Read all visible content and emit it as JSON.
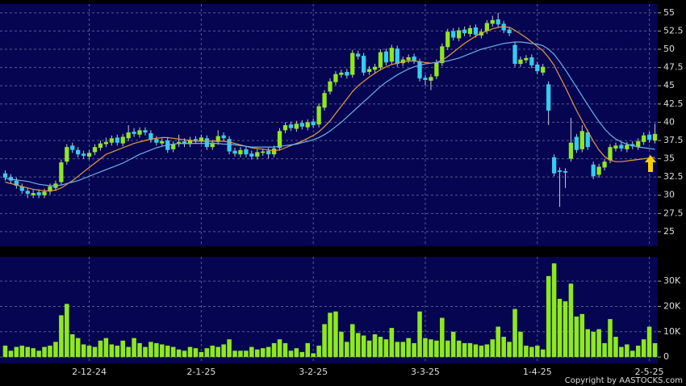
{
  "chart_data": {
    "type": "candlestick",
    "copyright": "Copyright by AASTOCKS.com",
    "categories": [
      null,
      null,
      null,
      null,
      null,
      null,
      null,
      null,
      null,
      null,
      null,
      null,
      null,
      null,
      null,
      "2-12-24",
      null,
      null,
      null,
      null,
      null,
      null,
      null,
      null,
      null,
      null,
      null,
      null,
      null,
      null,
      null,
      null,
      null,
      null,
      null,
      "2-1-25",
      null,
      null,
      null,
      null,
      null,
      null,
      null,
      null,
      null,
      null,
      null,
      null,
      null,
      null,
      null,
      null,
      null,
      null,
      null,
      "3-2-25",
      null,
      null,
      null,
      null,
      null,
      null,
      null,
      null,
      null,
      null,
      null,
      null,
      null,
      null,
      null,
      null,
      null,
      null,
      null,
      "3-3-25",
      null,
      null,
      null,
      null,
      null,
      null,
      null,
      null,
      null,
      null,
      null,
      null,
      null,
      null,
      null,
      null,
      null,
      null,
      null,
      "1-4-25",
      null,
      null,
      null,
      null,
      null,
      null,
      null,
      null,
      null,
      null,
      null,
      null,
      null,
      null,
      null,
      null,
      null,
      null,
      null,
      "2-5-25",
      null
    ],
    "ohlc": {
      "up_color": "#8ee81e",
      "down_color": "#33ccf0",
      "open": [
        33.0,
        32.5,
        32.0,
        31.2,
        30.6,
        30.0,
        30.4,
        30.0,
        30.5,
        31.0,
        31.8,
        34.6,
        36.8,
        36.2,
        35.7,
        35.3,
        35.9,
        36.5,
        37.0,
        37.2,
        37.9,
        37.1,
        37.8,
        38.7,
        38.3,
        38.9,
        38.5,
        37.7,
        37.1,
        37.5,
        36.3,
        37.0,
        37.4,
        37.0,
        37.7,
        37.4,
        37.8,
        36.6,
        37.3,
        38.2,
        37.7,
        36.1,
        35.6,
        36.3,
        35.7,
        35.3,
        35.8,
        36.1,
        35.6,
        36.5,
        38.9,
        39.7,
        39.1,
        39.9,
        39.3,
        40.1,
        39.7,
        42.0,
        44.2,
        45.5,
        46.5,
        46.9,
        46.5,
        49.4,
        49.1,
        46.9,
        47.2,
        47.5,
        49.7,
        48.3,
        50.1,
        48.1,
        48.5,
        49.0,
        48.3,
        46.1,
        45.7,
        46.3,
        48.1,
        50.3,
        52.5,
        51.5,
        52.7,
        52.1,
        53.0,
        51.9,
        52.5,
        53.5,
        54.1,
        53.5,
        52.7,
        50.6,
        48.0,
        48.5,
        48.9,
        47.9,
        46.8,
        45.2,
        35.2,
        33.4,
        33.3,
        35.0,
        38.0,
        36.3,
        38.6,
        34.2,
        32.8,
        33.8,
        34.8,
        36.4,
        36.9,
        36.3,
        37.0,
        36.6,
        37.3,
        38.3,
        37.5
      ],
      "high": [
        33.4,
        32.9,
        32.4,
        31.6,
        31.0,
        30.7,
        30.8,
        30.9,
        31.6,
        32.0,
        34.9,
        37.0,
        37.2,
        36.6,
        36.1,
        36.2,
        37.0,
        37.5,
        37.9,
        38.2,
        38.3,
        38.4,
        39.6,
        39.2,
        39.3,
        39.3,
        38.9,
        38.1,
        37.8,
        37.9,
        37.4,
        38.3,
        37.8,
        38.0,
        38.1,
        38.3,
        38.2,
        37.6,
        38.9,
        38.6,
        38.1,
        36.5,
        36.6,
        36.7,
        36.1,
        36.3,
        36.4,
        36.5,
        36.8,
        39.2,
        40.0,
        40.1,
        40.2,
        40.3,
        40.4,
        40.5,
        42.6,
        44.4,
        46.0,
        47.0,
        47.2,
        47.3,
        49.9,
        49.8,
        49.5,
        47.7,
        48.0,
        50.0,
        50.1,
        50.6,
        50.5,
        49.0,
        49.3,
        49.4,
        48.7,
        46.5,
        46.6,
        48.6,
        50.8,
        52.8,
        52.9,
        53.0,
        53.1,
        53.3,
        53.4,
        52.8,
        54.0,
        54.6,
        55.0,
        53.9,
        53.1,
        51.0,
        49.0,
        49.2,
        49.3,
        48.3,
        48.0,
        45.6,
        35.6,
        33.8,
        33.7,
        40.6,
        38.4,
        39.6,
        39.0,
        34.6,
        34.3,
        35.0,
        37.0,
        37.2,
        37.3,
        37.3,
        37.4,
        37.8,
        38.6,
        38.7,
        39.8
      ],
      "low": [
        32.0,
        31.6,
        30.9,
        30.2,
        29.6,
        29.6,
        29.6,
        29.6,
        30.1,
        30.6,
        31.4,
        34.2,
        35.8,
        35.2,
        35.0,
        34.9,
        35.5,
        36.1,
        36.6,
        36.8,
        36.8,
        36.7,
        37.4,
        38.0,
        37.9,
        38.2,
        37.2,
        36.8,
        36.7,
        35.8,
        35.9,
        36.6,
        36.6,
        36.6,
        37.1,
        37.0,
        36.2,
        36.2,
        36.9,
        37.4,
        35.6,
        35.3,
        35.2,
        35.2,
        34.9,
        34.9,
        35.4,
        35.0,
        35.2,
        36.1,
        38.5,
        38.8,
        38.7,
        39.0,
        38.9,
        39.2,
        39.3,
        41.6,
        43.8,
        45.1,
        46.1,
        46.0,
        46.1,
        48.6,
        46.4,
        46.5,
        46.8,
        47.1,
        47.8,
        47.9,
        47.6,
        47.7,
        48.1,
        48.0,
        45.6,
        45.0,
        44.4,
        45.9,
        47.7,
        49.9,
        51.2,
        51.1,
        51.8,
        51.7,
        51.6,
        51.5,
        52.1,
        53.1,
        53.0,
        52.2,
        51.8,
        47.6,
        47.6,
        48.1,
        47.4,
        46.6,
        46.4,
        39.6,
        32.6,
        28.4,
        31.0,
        34.6,
        35.8,
        35.9,
        36.2,
        32.2,
        32.4,
        33.4,
        34.4,
        36.0,
        36.0,
        35.9,
        36.3,
        36.2,
        36.9,
        37.2,
        37.1
      ],
      "close": [
        32.4,
        32.0,
        31.3,
        30.6,
        30.2,
        30.3,
        30.0,
        30.5,
        31.2,
        31.6,
        34.5,
        36.6,
        36.2,
        35.6,
        35.4,
        35.8,
        36.6,
        37.1,
        37.3,
        37.8,
        37.2,
        38.0,
        38.6,
        38.4,
        38.9,
        38.6,
        37.6,
        37.2,
        37.4,
        36.2,
        37.0,
        37.3,
        37.0,
        37.6,
        37.5,
        37.9,
        36.6,
        37.2,
        38.1,
        37.8,
        36.0,
        35.7,
        36.2,
        35.6,
        35.3,
        35.9,
        36.0,
        35.6,
        36.4,
        38.8,
        39.6,
        39.2,
        39.8,
        39.4,
        40.0,
        39.6,
        42.2,
        44.0,
        45.6,
        46.6,
        46.8,
        46.4,
        49.5,
        49.0,
        46.8,
        47.3,
        47.6,
        49.6,
        48.2,
        50.2,
        48.0,
        48.6,
        48.9,
        48.4,
        46.0,
        45.8,
        46.2,
        48.2,
        50.4,
        52.4,
        51.6,
        52.6,
        52.2,
        52.9,
        52.0,
        52.4,
        53.6,
        54.0,
        53.4,
        52.6,
        52.2,
        48.0,
        48.6,
        48.8,
        47.8,
        47.0,
        47.6,
        41.6,
        33.0,
        33.2,
        33.1,
        37.2,
        36.2,
        38.8,
        36.6,
        32.6,
        33.9,
        34.6,
        36.6,
        36.8,
        36.4,
        36.9,
        36.7,
        37.4,
        38.2,
        37.6,
        38.4
      ]
    },
    "lines": [
      {
        "color": "#e89a3c",
        "values": [
          31.8,
          31.6,
          31.4,
          31.2,
          31.0,
          30.8,
          30.7,
          30.6,
          30.6,
          30.7,
          31.0,
          31.5,
          32.0,
          32.6,
          33.2,
          33.8,
          34.4,
          35.0,
          35.6,
          35.9,
          36.2,
          36.5,
          36.8,
          37.1,
          37.3,
          37.5,
          37.7,
          37.8,
          37.9,
          37.9,
          37.8,
          37.7,
          37.6,
          37.5,
          37.4,
          37.4,
          37.4,
          37.4,
          37.4,
          37.4,
          37.3,
          37.1,
          36.9,
          36.7,
          36.5,
          36.4,
          36.3,
          36.2,
          36.1,
          36.2,
          36.5,
          36.8,
          37.1,
          37.4,
          37.8,
          38.2,
          38.7,
          39.4,
          40.2,
          41.2,
          42.2,
          43.2,
          44.2,
          45.0,
          45.6,
          46.2,
          46.7,
          47.2,
          47.6,
          47.9,
          48.1,
          48.3,
          48.4,
          48.4,
          48.3,
          48.2,
          48.1,
          48.2,
          48.5,
          49.0,
          49.6,
          50.2,
          50.8,
          51.3,
          51.8,
          52.2,
          52.5,
          52.8,
          53.0,
          53.1,
          53.0,
          52.6,
          52.1,
          51.6,
          51.0,
          50.4,
          49.8,
          48.9,
          47.8,
          46.3,
          44.8,
          43.2,
          41.6,
          40.2,
          38.8,
          37.4,
          36.2,
          35.3,
          34.8,
          34.6,
          34.6,
          34.7,
          34.8,
          34.9,
          35.0,
          35.1,
          35.2
        ]
      },
      {
        "color": "#6ab2e6",
        "values": [
          32.3,
          32.2,
          32.1,
          32.0,
          31.9,
          31.7,
          31.5,
          31.4,
          31.3,
          31.3,
          31.4,
          31.6,
          31.8,
          32.0,
          32.3,
          32.6,
          32.9,
          33.2,
          33.5,
          33.8,
          34.1,
          34.4,
          34.8,
          35.2,
          35.6,
          35.9,
          36.2,
          36.5,
          36.7,
          36.9,
          37.0,
          37.1,
          37.1,
          37.1,
          37.1,
          37.1,
          37.1,
          37.1,
          37.1,
          37.0,
          37.0,
          36.9,
          36.8,
          36.7,
          36.6,
          36.6,
          36.6,
          36.6,
          36.6,
          36.7,
          36.8,
          36.9,
          37.0,
          37.2,
          37.4,
          37.6,
          37.9,
          38.3,
          38.8,
          39.4,
          40.0,
          40.7,
          41.4,
          42.1,
          42.8,
          43.5,
          44.2,
          44.9,
          45.5,
          46.0,
          46.5,
          46.9,
          47.3,
          47.6,
          47.8,
          48.0,
          48.1,
          48.2,
          48.3,
          48.4,
          48.6,
          48.8,
          49.1,
          49.4,
          49.7,
          50.0,
          50.2,
          50.4,
          50.6,
          50.8,
          50.9,
          51.0,
          51.0,
          50.9,
          50.8,
          50.7,
          50.5,
          50.0,
          49.3,
          48.3,
          47.2,
          46.0,
          44.8,
          43.6,
          42.4,
          41.2,
          40.1,
          39.1,
          38.3,
          37.7,
          37.3,
          37.0,
          36.8,
          36.6,
          36.5,
          36.4,
          36.3
        ]
      }
    ],
    "ylim": [
      23,
      56.2
    ],
    "yticks": [
      25,
      27.5,
      30,
      32.5,
      35,
      37.5,
      40,
      42.5,
      45,
      47.5,
      50,
      52.5,
      55
    ],
    "grid": true,
    "volume": {
      "type": "bar",
      "color": "#8ee81e",
      "ylim": [
        -2500,
        39600
      ],
      "yticks": [
        0,
        {
          "value": 10000,
          "label": "10K"
        },
        {
          "value": 20000,
          "label": "20K"
        },
        {
          "value": 30000,
          "label": "30K"
        }
      ],
      "values": [
        4500,
        2500,
        4000,
        4500,
        4000,
        3500,
        2500,
        4000,
        4500,
        6000,
        16500,
        21000,
        9000,
        7500,
        5000,
        4500,
        4000,
        6500,
        7500,
        5000,
        4500,
        6500,
        4000,
        7500,
        5500,
        4000,
        6000,
        5500,
        5000,
        4500,
        4000,
        3000,
        2500,
        4000,
        3500,
        2000,
        3500,
        4500,
        4000,
        5000,
        7000,
        2500,
        2500,
        2500,
        4000,
        3000,
        3500,
        4000,
        5500,
        7000,
        5500,
        2500,
        3500,
        2000,
        5500,
        1500,
        4500,
        13000,
        17500,
        18000,
        10000,
        6000,
        13000,
        9500,
        8500,
        6500,
        9000,
        8000,
        7000,
        11500,
        6000,
        6000,
        7500,
        5500,
        18000,
        7500,
        7000,
        6500,
        15500,
        6500,
        10000,
        6500,
        5500,
        5500,
        5000,
        4500,
        5000,
        7000,
        12000,
        8000,
        6000,
        19000,
        10000,
        4500,
        4000,
        4500,
        3000,
        32000,
        37000,
        23000,
        22000,
        29000,
        16000,
        17000,
        11000,
        10000,
        11000,
        5500,
        15000,
        8000,
        4000,
        5000,
        2500,
        4500,
        7000,
        12000,
        5500
      ]
    }
  }
}
